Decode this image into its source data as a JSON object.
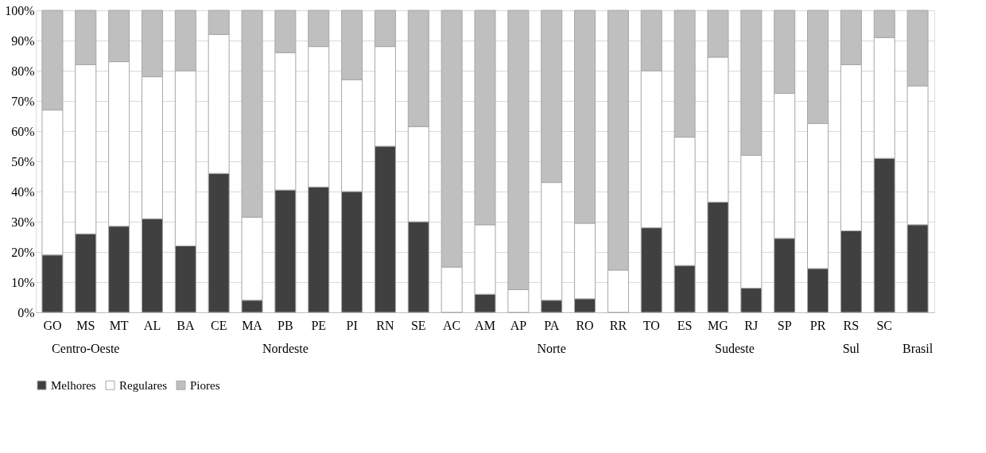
{
  "chart_data": {
    "type": "bar",
    "stacked": true,
    "categories": [
      "GO",
      "MS",
      "MT",
      "AL",
      "BA",
      "CE",
      "MA",
      "PB",
      "PE",
      "PI",
      "RN",
      "SE",
      "AC",
      "AM",
      "AP",
      "PA",
      "RO",
      "RR",
      "TO",
      "ES",
      "MG",
      "RJ",
      "SP",
      "PR",
      "RS",
      "SC",
      null
    ],
    "series": [
      {
        "name": "Melhores",
        "color": "#404040",
        "values": [
          19,
          26,
          28.5,
          31,
          22,
          46,
          4,
          40.5,
          41.5,
          40,
          55,
          30,
          0,
          6,
          0,
          4,
          4.5,
          0,
          28,
          15.5,
          36.5,
          8,
          24.5,
          14.5,
          27,
          51,
          29
        ]
      },
      {
        "name": "Regulares",
        "color": "#ffffff",
        "values": [
          48,
          56,
          54.5,
          47,
          58,
          46,
          27.5,
          45.5,
          46.5,
          37,
          33,
          31.5,
          15,
          23,
          7.5,
          39,
          25,
          14,
          52,
          42.5,
          48,
          44,
          48,
          48,
          55,
          40,
          46
        ]
      },
      {
        "name": "Piores",
        "color": "#bfbfbf",
        "values": [
          33,
          18,
          17,
          22,
          20,
          8,
          68.5,
          14,
          12,
          23,
          12,
          38.5,
          85,
          71,
          92.5,
          57,
          70.5,
          86,
          20,
          42,
          15.5,
          48,
          27.5,
          37.5,
          18,
          9,
          25
        ]
      }
    ],
    "ylim": [
      0,
      100
    ],
    "yticks": [
      {
        "value": 0,
        "label": "0%"
      },
      {
        "value": 10,
        "label": "10%"
      },
      {
        "value": 20,
        "label": "20%"
      },
      {
        "value": 30,
        "label": "30%"
      },
      {
        "value": 40,
        "label": "40%"
      },
      {
        "value": 50,
        "label": "50%"
      },
      {
        "value": 60,
        "label": "60%"
      },
      {
        "value": 70,
        "label": "70%"
      },
      {
        "value": 80,
        "label": "80%"
      },
      {
        "value": 90,
        "label": "90%"
      },
      {
        "value": 100,
        "label": "100%"
      }
    ],
    "grid": "y",
    "legend": "bottom",
    "annotations": [
      "Centro-Oeste",
      "Nordeste",
      "Norte",
      "Sudeste",
      "Sul",
      "Brasil"
    ]
  }
}
